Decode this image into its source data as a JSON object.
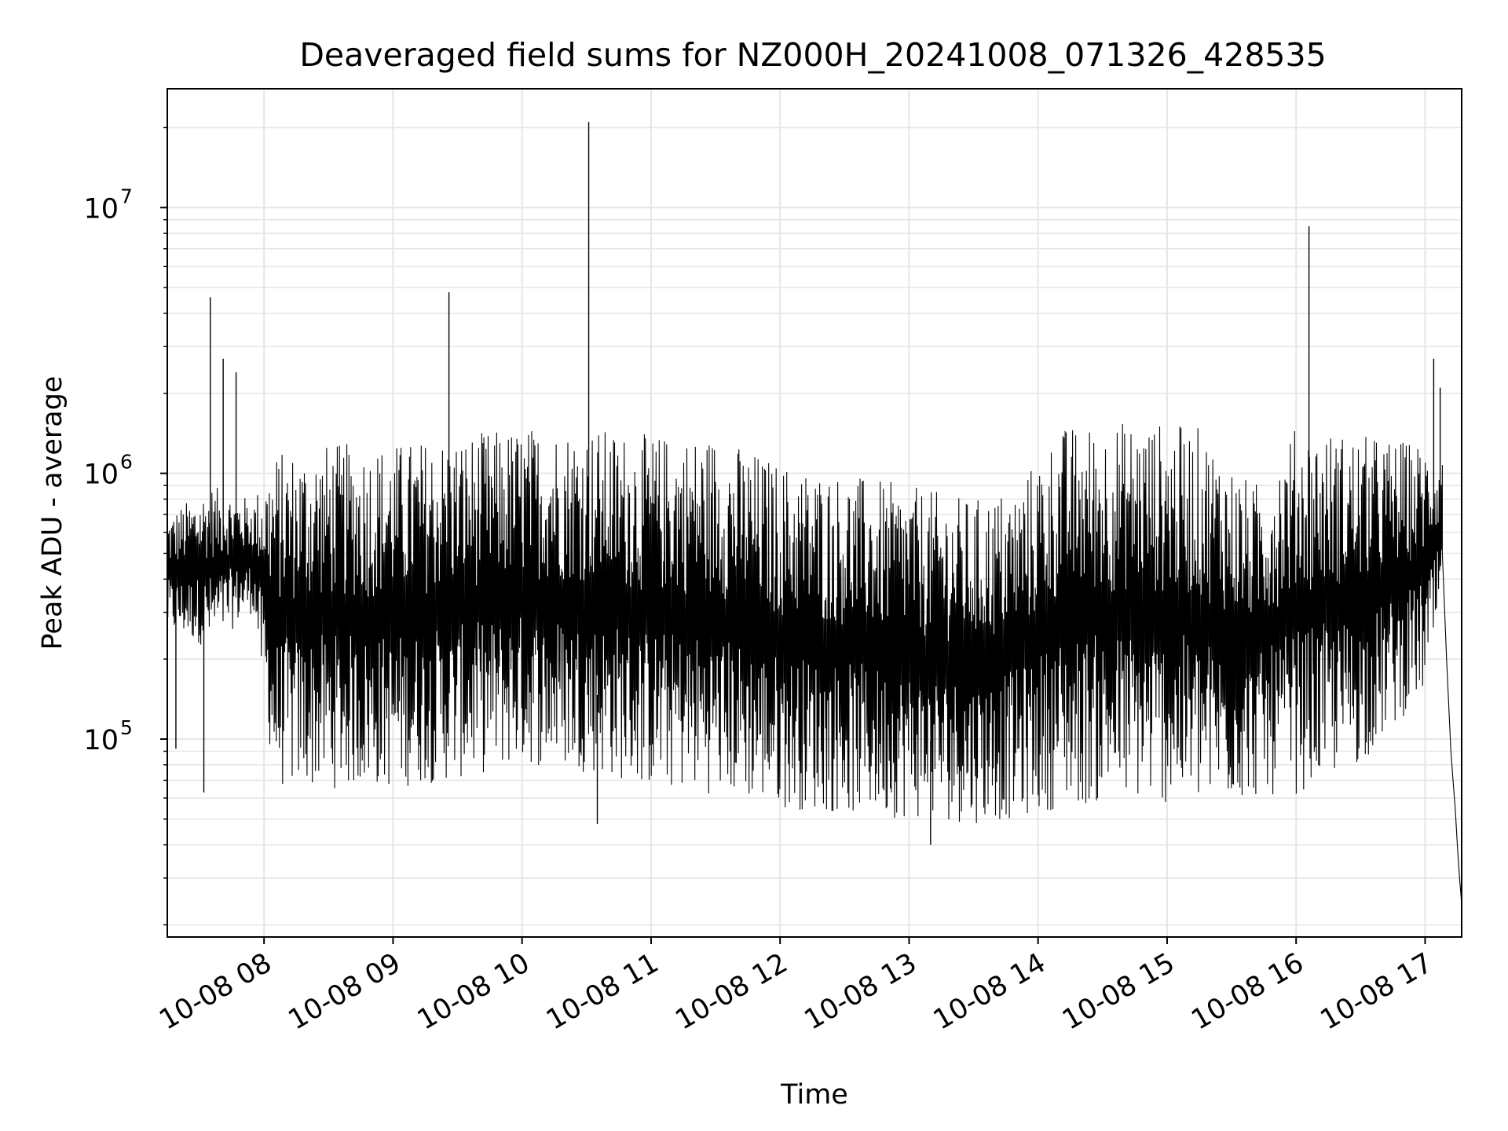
{
  "chart_data": {
    "type": "line",
    "title": "Deaveraged field sums for NZ000H_20241008_071326_428535",
    "xlabel": "Time",
    "ylabel": "Peak ADU - average",
    "y_scale": "log",
    "grid": true,
    "legend": "none",
    "series_color": "#000000",
    "grid_color": "#e6e6e6",
    "xlim": [
      "2024-10-08 07:15",
      "2024-10-08 17:17"
    ],
    "ylim": [
      18000,
      28000000
    ],
    "x_ticks": [
      "10-08 08",
      "10-08 09",
      "10-08 10",
      "10-08 11",
      "10-08 12",
      "10-08 13",
      "10-08 14",
      "10-08 15",
      "10-08 16",
      "10-08 17"
    ],
    "x_tick_times": [
      "2024-10-08 08:00",
      "2024-10-08 09:00",
      "2024-10-08 10:00",
      "2024-10-08 11:00",
      "2024-10-08 12:00",
      "2024-10-08 13:00",
      "2024-10-08 14:00",
      "2024-10-08 15:00",
      "2024-10-08 16:00",
      "2024-10-08 17:00"
    ],
    "y_ticks": [
      100000,
      1000000,
      10000000
    ],
    "y_tick_labels": [
      {
        "base": "10",
        "exp": "5"
      },
      {
        "base": "10",
        "exp": "6"
      },
      {
        "base": "10",
        "exp": "7"
      }
    ],
    "envelope": {
      "time": [
        "2024-10-08 07:15",
        "2024-10-08 07:35",
        "2024-10-08 07:55",
        "2024-10-08 08:05",
        "2024-10-08 08:30",
        "2024-10-08 09:00",
        "2024-10-08 09:30",
        "2024-10-08 10:00",
        "2024-10-08 10:30",
        "2024-10-08 11:00",
        "2024-10-08 11:30",
        "2024-10-08 12:00",
        "2024-10-08 12:30",
        "2024-10-08 13:00",
        "2024-10-08 13:30",
        "2024-10-08 13:50",
        "2024-10-08 14:10",
        "2024-10-08 14:45",
        "2024-10-08 15:15",
        "2024-10-08 15:40",
        "2024-10-08 16:00",
        "2024-10-08 16:30",
        "2024-10-08 17:00",
        "2024-10-08 17:08"
      ],
      "high": [
        700000,
        900000,
        800000,
        1200000,
        1300000,
        1300000,
        1400000,
        1500000,
        1500000,
        1400000,
        1400000,
        1100000,
        1000000,
        900000,
        800000,
        900000,
        1500000,
        1600000,
        1500000,
        900000,
        1500000,
        1400000,
        1300000,
        1200000
      ],
      "low": [
        250000,
        220000,
        300000,
        65000,
        65000,
        65000,
        70000,
        80000,
        75000,
        65000,
        62000,
        55000,
        52000,
        50000,
        48000,
        50000,
        55000,
        58000,
        55000,
        60000,
        62000,
        80000,
        150000,
        300000
      ]
    },
    "spikes": [
      {
        "time": "2024-10-08 07:35",
        "value": 4600000
      },
      {
        "time": "2024-10-08 07:41",
        "value": 2700000
      },
      {
        "time": "2024-10-08 07:47",
        "value": 2400000
      },
      {
        "time": "2024-10-08 09:26",
        "value": 4800000
      },
      {
        "time": "2024-10-08 10:31",
        "value": 21000000
      },
      {
        "time": "2024-10-08 16:06",
        "value": 8500000
      },
      {
        "time": "2024-10-08 17:04",
        "value": 2700000
      },
      {
        "time": "2024-10-08 17:07",
        "value": 2100000
      }
    ],
    "dips": [
      {
        "time": "2024-10-08 07:19",
        "value": 92000
      },
      {
        "time": "2024-10-08 07:32",
        "value": 63000
      },
      {
        "time": "2024-10-08 10:35",
        "value": 48000
      },
      {
        "time": "2024-10-08 13:10",
        "value": 40000
      }
    ],
    "tail": {
      "time": [
        "2024-10-08 17:08",
        "2024-10-08 17:10",
        "2024-10-08 17:12",
        "2024-10-08 17:13",
        "2024-10-08 17:14",
        "2024-10-08 17:15",
        "2024-10-08 17:16",
        "2024-10-08 17:17"
      ],
      "value": [
        500000,
        200000,
        90000,
        70000,
        55000,
        40000,
        30000,
        24000
      ]
    }
  }
}
